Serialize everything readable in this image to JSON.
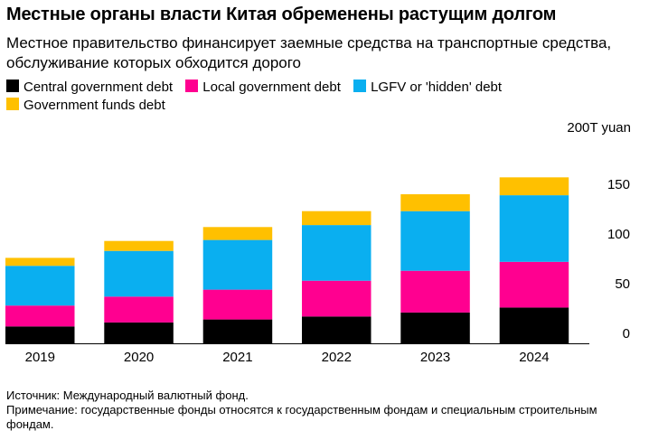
{
  "header": {
    "title": "Местные органы власти Китая обременены растущим долгом",
    "subtitle": "Местное правительство финансирует заемные средства на транспортные средства, обслуживание которых обходится дорого"
  },
  "footer": {
    "source": "Источник: Международный валютный фонд.",
    "note": "Примечание: государственные фонды относятся к государственным фондам и специальным строительным фондам."
  },
  "chart_data": {
    "type": "bar",
    "stacked": true,
    "categories": [
      "2019",
      "2020",
      "2021",
      "2022",
      "2023",
      "2024"
    ],
    "series": [
      {
        "name": "Central government debt",
        "color": "#000000",
        "values": [
          17,
          21,
          24,
          27,
          31,
          36
        ]
      },
      {
        "name": "Local government debt",
        "color": "#ff0090",
        "values": [
          21,
          26,
          30,
          36,
          42,
          46
        ]
      },
      {
        "name": "LGFV or 'hidden' debt",
        "color": "#0aaff0",
        "values": [
          40,
          46,
          50,
          56,
          60,
          67
        ]
      },
      {
        "name": "Government funds debt",
        "color": "#ffc000",
        "values": [
          8,
          10,
          13,
          14,
          17,
          18
        ]
      }
    ],
    "unit_label": "200T yuan",
    "yticks": [
      0,
      50,
      100,
      150
    ],
    "ylim": [
      0,
      200
    ],
    "grid": false,
    "legend_position": "top-left"
  }
}
